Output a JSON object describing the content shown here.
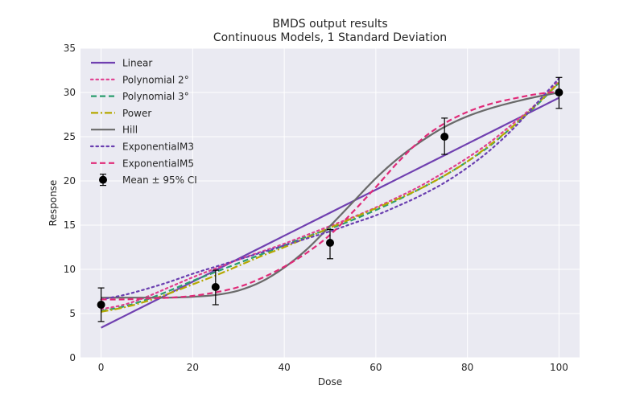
{
  "chart_data": {
    "type": "line",
    "title": "BMDS output results",
    "subtitle": "Continuous Models, 1 Standard Deviation",
    "xlabel": "Dose",
    "ylabel": "Response",
    "xlim": [
      -4.5,
      104.5
    ],
    "ylim": [
      0,
      35
    ],
    "xticks": [
      "0",
      "20",
      "40",
      "60",
      "80",
      "100"
    ],
    "yticks": [
      "0",
      "5",
      "10",
      "15",
      "20",
      "25",
      "30",
      "35"
    ],
    "grid": true,
    "legend_position": "top-left",
    "background": "#eaeaf2",
    "x": [
      0,
      5,
      10,
      15,
      20,
      25,
      30,
      35,
      40,
      45,
      50,
      55,
      60,
      65,
      70,
      75,
      80,
      85,
      90,
      95,
      100
    ],
    "series": [
      {
        "name": "Linear",
        "color": "#7040b0",
        "dash": "solid",
        "values": [
          3.4,
          4.7,
          6.0,
          7.3,
          8.6,
          9.9,
          11.2,
          12.5,
          13.8,
          15.1,
          16.4,
          17.7,
          19.0,
          20.3,
          21.6,
          22.9,
          24.2,
          25.5,
          26.8,
          28.1,
          29.4
        ]
      },
      {
        "name": "Polynomial 2°",
        "color": "#e03e8f",
        "dash": "dotted",
        "values": [
          5.5,
          6.0,
          6.9,
          8.0,
          9.1,
          10.1,
          11.1,
          12.0,
          12.9,
          13.9,
          14.9,
          15.9,
          17.0,
          18.2,
          19.5,
          21.0,
          22.6,
          24.4,
          26.5,
          28.7,
          31.3
        ]
      },
      {
        "name": "Polynomial 3°",
        "color": "#2a9d6e",
        "dash": "dashed",
        "values": [
          5.3,
          5.8,
          6.6,
          7.6,
          8.7,
          9.7,
          10.7,
          11.7,
          12.7,
          13.7,
          14.6,
          15.6,
          16.7,
          17.9,
          19.2,
          20.6,
          22.2,
          24.0,
          26.2,
          28.5,
          31.1
        ]
      },
      {
        "name": "Power",
        "color": "#b5a800",
        "dash": "dashdot",
        "values": [
          5.2,
          5.7,
          6.4,
          7.3,
          8.3,
          9.3,
          10.4,
          11.5,
          12.5,
          13.6,
          14.7,
          15.8,
          16.9,
          18.0,
          19.2,
          20.6,
          22.2,
          24.1,
          26.2,
          28.6,
          31.1
        ]
      },
      {
        "name": "Hill",
        "color": "#6a6a6a",
        "dash": "solid",
        "values": [
          6.8,
          6.8,
          6.8,
          6.8,
          6.9,
          7.1,
          7.6,
          8.6,
          10.2,
          12.3,
          14.9,
          17.6,
          20.3,
          22.6,
          24.5,
          26.1,
          27.3,
          28.2,
          28.9,
          29.5,
          30.0
        ]
      },
      {
        "name": "ExponentialM3",
        "color": "#6a3fb0",
        "dash": "dotted",
        "values": [
          6.6,
          7.1,
          7.8,
          8.6,
          9.5,
          10.3,
          11.1,
          11.9,
          12.7,
          13.5,
          14.3,
          15.2,
          16.1,
          17.2,
          18.4,
          19.8,
          21.5,
          23.5,
          25.9,
          28.7,
          31.6
        ]
      },
      {
        "name": "ExponentialM5",
        "color": "#e02a78",
        "dash": "dashed",
        "values": [
          6.6,
          6.6,
          6.7,
          6.8,
          7.0,
          7.4,
          8.0,
          9.0,
          10.3,
          11.9,
          13.9,
          16.5,
          19.3,
          22.2,
          24.7,
          26.5,
          27.8,
          28.7,
          29.3,
          29.8,
          30.1
        ]
      }
    ],
    "observations": {
      "name": "Mean ± 95% CI",
      "color": "#000000",
      "x": [
        0,
        25,
        50,
        75,
        100
      ],
      "mean": [
        6.0,
        8.0,
        13.0,
        25.0,
        30.0
      ],
      "lower": [
        4.1,
        6.0,
        11.2,
        23.0,
        28.2
      ],
      "upper": [
        7.9,
        9.9,
        14.5,
        27.1,
        31.7
      ]
    }
  }
}
